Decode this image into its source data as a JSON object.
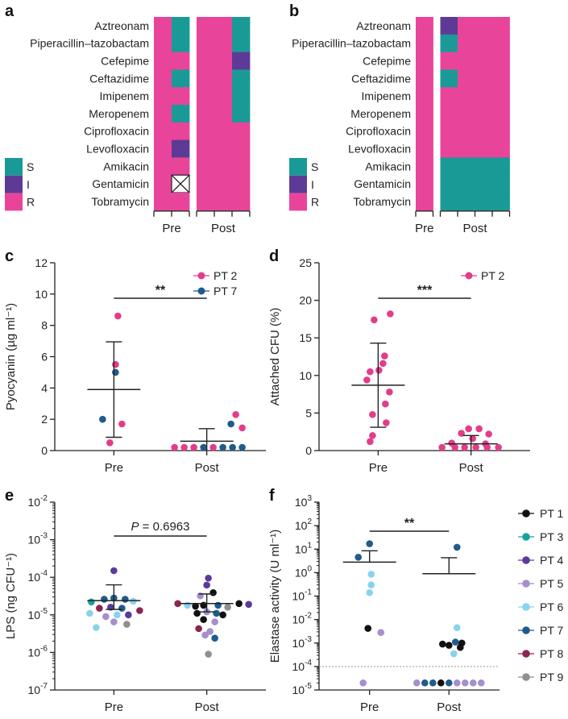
{
  "colors": {
    "S": "#1a9a96",
    "I": "#5e3a97",
    "R": "#e8459a",
    "PT 1": "#111111",
    "PT 2": "#e23d8a",
    "PT 3": "#14a39a",
    "PT 4": "#5b3a9c",
    "PT 5": "#a58fcc",
    "PT 6": "#88d3ee",
    "PT 7": "#1f5b8c",
    "PT 8": "#8c2450",
    "PT 9": "#8f8f8f"
  },
  "panels": {
    "a": "a",
    "b": "b",
    "c": "c",
    "d": "d",
    "e": "e",
    "f": "f"
  },
  "heatmap_legend": [
    "S",
    "I",
    "R"
  ],
  "chart_data": [
    {
      "panel": "a",
      "type": "heatmap",
      "rows": [
        "Aztreonam",
        "Piperacillin–tazobactam",
        "Cefepime",
        "Ceftazidime",
        "Imipenem",
        "Meropenem",
        "Ciprofloxacin",
        "Levofloxacin",
        "Amikacin",
        "Gentamicin",
        "Tobramycin"
      ],
      "groups": [
        "Pre",
        "Post"
      ],
      "columns_per_group": [
        2,
        3
      ],
      "cells": [
        [
          "R",
          "S",
          "R",
          "R",
          "S"
        ],
        [
          "R",
          "S",
          "R",
          "R",
          "S"
        ],
        [
          "R",
          "R",
          "R",
          "R",
          "I"
        ],
        [
          "R",
          "S",
          "R",
          "R",
          "S"
        ],
        [
          "R",
          "R",
          "R",
          "R",
          "S"
        ],
        [
          "R",
          "S",
          "R",
          "R",
          "S"
        ],
        [
          "R",
          "R",
          "R",
          "R",
          "R"
        ],
        [
          "R",
          "I",
          "R",
          "R",
          "R"
        ],
        [
          "R",
          "R",
          "R",
          "R",
          "R"
        ],
        [
          "R",
          "X",
          "R",
          "R",
          "R"
        ],
        [
          "R",
          "R",
          "R",
          "R",
          "R"
        ]
      ]
    },
    {
      "panel": "b",
      "type": "heatmap",
      "rows": [
        "Aztreonam",
        "Piperacillin–tazobactam",
        "Cefepime",
        "Ceftazidime",
        "Imipenem",
        "Meropenem",
        "Ciprofloxacin",
        "Levofloxacin",
        "Amikacin",
        "Gentamicin",
        "Tobramycin"
      ],
      "groups": [
        "Pre",
        "Post"
      ],
      "columns_per_group": [
        1,
        4
      ],
      "cells": [
        [
          "R",
          "I",
          "R",
          "R",
          "R"
        ],
        [
          "R",
          "S",
          "R",
          "R",
          "R"
        ],
        [
          "R",
          "R",
          "R",
          "R",
          "R"
        ],
        [
          "R",
          "S",
          "R",
          "R",
          "R"
        ],
        [
          "R",
          "R",
          "R",
          "R",
          "R"
        ],
        [
          "R",
          "R",
          "R",
          "R",
          "R"
        ],
        [
          "R",
          "R",
          "R",
          "R",
          "R"
        ],
        [
          "R",
          "R",
          "R",
          "R",
          "R"
        ],
        [
          "R",
          "S",
          "S",
          "S",
          "S"
        ],
        [
          "R",
          "S",
          "S",
          "S",
          "S"
        ],
        [
          "R",
          "S",
          "S",
          "S",
          "S"
        ]
      ]
    },
    {
      "panel": "c",
      "type": "scatter",
      "categories": [
        "Pre",
        "Post"
      ],
      "ylabel": "Pyocyanin (µg ml⁻¹)",
      "ylim": [
        0,
        12
      ],
      "yticks": [
        0,
        2,
        4,
        6,
        8,
        10,
        12
      ],
      "legend": [
        "PT 2",
        "PT 7"
      ],
      "significance": "**",
      "mean": [
        3.9,
        0.6
      ],
      "sd_upper": [
        6.95,
        1.4
      ],
      "sd_lower": [
        0.85,
        0
      ],
      "points": [
        {
          "cat": 0,
          "dx": 5,
          "y": 8.6,
          "pt": "PT 2"
        },
        {
          "cat": 0,
          "dx": 2,
          "y": 5.5,
          "pt": "PT 2"
        },
        {
          "cat": 0,
          "dx": 2,
          "y": 5.0,
          "pt": "PT 7"
        },
        {
          "cat": 0,
          "dx": -14,
          "y": 2.0,
          "pt": "PT 7"
        },
        {
          "cat": 0,
          "dx": 10,
          "y": 1.7,
          "pt": "PT 2"
        },
        {
          "cat": 0,
          "dx": -5,
          "y": 0.5,
          "pt": "PT 2"
        },
        {
          "cat": 1,
          "dx": 36,
          "y": 2.3,
          "pt": "PT 2"
        },
        {
          "cat": 1,
          "dx": 30,
          "y": 1.7,
          "pt": "PT 7"
        },
        {
          "cat": 1,
          "dx": 44,
          "y": 1.45,
          "pt": "PT 2"
        },
        {
          "cat": 1,
          "dx": -40,
          "y": 0,
          "pt": "PT 2"
        },
        {
          "cat": 1,
          "dx": -28,
          "y": 0.05,
          "pt": "PT 2"
        },
        {
          "cat": 1,
          "dx": -16,
          "y": 0.1,
          "pt": "PT 2"
        },
        {
          "cat": 1,
          "dx": -4,
          "y": 0,
          "pt": "PT 7"
        },
        {
          "cat": 1,
          "dx": 8,
          "y": 0,
          "pt": "PT 2"
        },
        {
          "cat": 1,
          "dx": 20,
          "y": 0,
          "pt": "PT 7"
        },
        {
          "cat": 1,
          "dx": 32,
          "y": 0,
          "pt": "PT 7"
        },
        {
          "cat": 1,
          "dx": 44,
          "y": 0,
          "pt": "PT 7"
        }
      ]
    },
    {
      "panel": "d",
      "type": "scatter",
      "categories": [
        "Pre",
        "Post"
      ],
      "ylabel": "Attached CFU (%)",
      "ylim": [
        0,
        25
      ],
      "yticks": [
        0,
        5,
        10,
        15,
        20,
        25
      ],
      "legend": [
        "PT 2"
      ],
      "significance": "***",
      "mean": [
        8.7,
        0.9
      ],
      "sd_upper": [
        14.3,
        2.0
      ],
      "sd_lower": [
        3.1,
        0
      ],
      "points": [
        {
          "cat": 0,
          "dx": 15,
          "y": 18.2,
          "pt": "PT 2"
        },
        {
          "cat": 0,
          "dx": -5,
          "y": 17.4,
          "pt": "PT 2"
        },
        {
          "cat": 0,
          "dx": 8,
          "y": 12.6,
          "pt": "PT 2"
        },
        {
          "cat": 0,
          "dx": 6,
          "y": 11.6,
          "pt": "PT 2"
        },
        {
          "cat": 0,
          "dx": -10,
          "y": 10.5,
          "pt": "PT 2"
        },
        {
          "cat": 0,
          "dx": 1,
          "y": 10.7,
          "pt": "PT 2"
        },
        {
          "cat": 0,
          "dx": -14,
          "y": 9.4,
          "pt": "PT 2"
        },
        {
          "cat": 0,
          "dx": 14,
          "y": 7.8,
          "pt": "PT 2"
        },
        {
          "cat": 0,
          "dx": 9,
          "y": 6.2,
          "pt": "PT 2"
        },
        {
          "cat": 0,
          "dx": -7,
          "y": 4.8,
          "pt": "PT 2"
        },
        {
          "cat": 0,
          "dx": 10,
          "y": 3.7,
          "pt": "PT 2"
        },
        {
          "cat": 0,
          "dx": -7,
          "y": 2.0,
          "pt": "PT 2"
        },
        {
          "cat": 0,
          "dx": -10,
          "y": 1.2,
          "pt": "PT 2"
        },
        {
          "cat": 1,
          "dx": -3,
          "y": 2.9,
          "pt": "PT 2"
        },
        {
          "cat": 1,
          "dx": 10,
          "y": 2.9,
          "pt": "PT 2"
        },
        {
          "cat": 1,
          "dx": -12,
          "y": 2.3,
          "pt": "PT 2"
        },
        {
          "cat": 1,
          "dx": 22,
          "y": 2.2,
          "pt": "PT 2"
        },
        {
          "cat": 1,
          "dx": 2,
          "y": 1.6,
          "pt": "PT 2"
        },
        {
          "cat": 1,
          "dx": -24,
          "y": 1.0,
          "pt": "PT 2"
        },
        {
          "cat": 1,
          "dx": 18,
          "y": 0.9,
          "pt": "PT 2"
        },
        {
          "cat": 1,
          "dx": -36,
          "y": 0.25,
          "pt": "PT 2"
        },
        {
          "cat": 1,
          "dx": -20,
          "y": 0.2,
          "pt": "PT 2"
        },
        {
          "cat": 1,
          "dx": -8,
          "y": 0.25,
          "pt": "PT 2"
        },
        {
          "cat": 1,
          "dx": 6,
          "y": 0.15,
          "pt": "PT 2"
        },
        {
          "cat": 1,
          "dx": 20,
          "y": 0.2,
          "pt": "PT 2"
        },
        {
          "cat": 1,
          "dx": 34,
          "y": 0.2,
          "pt": "PT 2"
        }
      ]
    },
    {
      "panel": "e",
      "type": "scatter",
      "scale": "log",
      "categories": [
        "Pre",
        "Post"
      ],
      "ylabel": "LPS (ng CFU⁻¹)",
      "ylim_exp": [
        -7,
        -2
      ],
      "significance": "P = 0.6963",
      "mean": [
        2.4e-05,
        2e-05
      ],
      "sd_upper": [
        6.3e-05,
        3.6e-05
      ],
      "sd_lower": [
        1.4e-05,
        1.2e-05
      ],
      "points": [
        {
          "cat": 0,
          "dx": 0,
          "y": 0.00015,
          "pt": "PT 4"
        },
        {
          "cat": 0,
          "dx": -12,
          "y": 2.6e-05,
          "pt": "PT 7"
        },
        {
          "cat": 0,
          "dx": 0,
          "y": 2.8e-05,
          "pt": "PT 7"
        },
        {
          "cat": 0,
          "dx": 14,
          "y": 2.6e-05,
          "pt": "PT 7"
        },
        {
          "cat": 0,
          "dx": -28,
          "y": 2.2e-05,
          "pt": "PT 3"
        },
        {
          "cat": 0,
          "dx": 24,
          "y": 2.3e-05,
          "pt": "PT 6"
        },
        {
          "cat": 0,
          "dx": -18,
          "y": 1.5e-05,
          "pt": "PT 8"
        },
        {
          "cat": 0,
          "dx": -4,
          "y": 1.6e-05,
          "pt": "PT 4"
        },
        {
          "cat": 0,
          "dx": 10,
          "y": 1.5e-05,
          "pt": "PT 7"
        },
        {
          "cat": 0,
          "dx": -30,
          "y": 1.1e-05,
          "pt": "PT 6"
        },
        {
          "cat": 0,
          "dx": -10,
          "y": 9e-06,
          "pt": "PT 5"
        },
        {
          "cat": 0,
          "dx": 4,
          "y": 1e-05,
          "pt": "PT 6"
        },
        {
          "cat": 0,
          "dx": 18,
          "y": 1e-05,
          "pt": "PT 4"
        },
        {
          "cat": 0,
          "dx": 32,
          "y": 1.3e-05,
          "pt": "PT 8"
        },
        {
          "cat": 0,
          "dx": -22,
          "y": 4.6e-06,
          "pt": "PT 6"
        },
        {
          "cat": 0,
          "dx": 0,
          "y": 6.5e-06,
          "pt": "PT 5"
        },
        {
          "cat": 0,
          "dx": 16,
          "y": 5.6e-06,
          "pt": "PT 9"
        },
        {
          "cat": 1,
          "dx": 2,
          "y": 9.5e-05,
          "pt": "PT 4"
        },
        {
          "cat": 1,
          "dx": 0,
          "y": 6.2e-05,
          "pt": "PT 4"
        },
        {
          "cat": 1,
          "dx": 8,
          "y": 3.9e-05,
          "pt": "PT 1"
        },
        {
          "cat": 1,
          "dx": -8,
          "y": 3.2e-05,
          "pt": "PT 5"
        },
        {
          "cat": 1,
          "dx": -36,
          "y": 2e-05,
          "pt": "PT 8"
        },
        {
          "cat": 1,
          "dx": -24,
          "y": 1.8e-05,
          "pt": "PT 6"
        },
        {
          "cat": 1,
          "dx": -14,
          "y": 1.7e-05,
          "pt": "PT 1"
        },
        {
          "cat": 1,
          "dx": -4,
          "y": 1.8e-05,
          "pt": "PT 1"
        },
        {
          "cat": 1,
          "dx": 14,
          "y": 1.8e-05,
          "pt": "PT 7"
        },
        {
          "cat": 1,
          "dx": 26,
          "y": 1.6e-05,
          "pt": "PT 9"
        },
        {
          "cat": 1,
          "dx": 40,
          "y": 2e-05,
          "pt": "PT 1"
        },
        {
          "cat": 1,
          "dx": 52,
          "y": 1.9e-05,
          "pt": "PT 4"
        },
        {
          "cat": 1,
          "dx": -12,
          "y": 1.1e-05,
          "pt": "PT 1"
        },
        {
          "cat": 1,
          "dx": 0,
          "y": 1.2e-05,
          "pt": "PT 5"
        },
        {
          "cat": 1,
          "dx": 12,
          "y": 1.1e-05,
          "pt": "PT 7"
        },
        {
          "cat": 1,
          "dx": 20,
          "y": 1e-05,
          "pt": "PT 1"
        },
        {
          "cat": 1,
          "dx": -4,
          "y": 7.5e-06,
          "pt": "PT 1"
        },
        {
          "cat": 1,
          "dx": 10,
          "y": 6.5e-06,
          "pt": "PT 5"
        },
        {
          "cat": 1,
          "dx": -10,
          "y": 4.3e-06,
          "pt": "PT 8"
        },
        {
          "cat": 1,
          "dx": 4,
          "y": 3.6e-06,
          "pt": "PT 5"
        },
        {
          "cat": 1,
          "dx": -2,
          "y": 2.9e-06,
          "pt": "PT 5"
        },
        {
          "cat": 1,
          "dx": 10,
          "y": 2.4e-06,
          "pt": "PT 7"
        },
        {
          "cat": 1,
          "dx": 2,
          "y": 9e-07,
          "pt": "PT 9"
        }
      ]
    },
    {
      "panel": "f",
      "type": "scatter",
      "scale": "log",
      "categories": [
        "Pre",
        "Post"
      ],
      "ylabel": "Elastase activity (U ml⁻¹)",
      "ylim_exp": [
        -5,
        3
      ],
      "threshold": 0.0001,
      "significance": "**",
      "mean": [
        2.8,
        0.9
      ],
      "sd_upper": [
        8.5,
        4.3
      ],
      "sd_lower": null,
      "legend": [
        "PT 1",
        "PT 3",
        "PT 4",
        "PT 5",
        "PT 6",
        "PT 7",
        "PT 8",
        "PT 9"
      ],
      "points": [
        {
          "cat": 0,
          "dx": 0,
          "y": 17,
          "pt": "PT 7"
        },
        {
          "cat": 0,
          "dx": -14,
          "y": 4.5,
          "pt": "PT 7"
        },
        {
          "cat": 0,
          "dx": 2,
          "y": 0.85,
          "pt": "PT 6"
        },
        {
          "cat": 0,
          "dx": 2,
          "y": 0.3,
          "pt": "PT 6"
        },
        {
          "cat": 0,
          "dx": 0,
          "y": 0.14,
          "pt": "PT 6"
        },
        {
          "cat": 0,
          "dx": -2,
          "y": 0.0042,
          "pt": "PT 1"
        },
        {
          "cat": 0,
          "dx": 14,
          "y": 0.0028,
          "pt": "PT 5"
        },
        {
          "cat": 0,
          "dx": -8,
          "y": 2e-05,
          "pt": "PT 5"
        },
        {
          "cat": 1,
          "dx": 10,
          "y": 12,
          "pt": "PT 7"
        },
        {
          "cat": 1,
          "dx": 10,
          "y": 0.0045,
          "pt": "PT 6"
        },
        {
          "cat": 1,
          "dx": -8,
          "y": 0.0009,
          "pt": "PT 1"
        },
        {
          "cat": 1,
          "dx": 0,
          "y": 0.0008,
          "pt": "PT 1"
        },
        {
          "cat": 1,
          "dx": 8,
          "y": 0.0011,
          "pt": "PT 7"
        },
        {
          "cat": 1,
          "dx": 16,
          "y": 0.001,
          "pt": "PT 1"
        },
        {
          "cat": 1,
          "dx": 14,
          "y": 0.00065,
          "pt": "PT 1"
        },
        {
          "cat": 1,
          "dx": 6,
          "y": 0.00035,
          "pt": "PT 6"
        },
        {
          "cat": 1,
          "dx": -40,
          "y": 2e-05,
          "pt": "PT 5"
        },
        {
          "cat": 1,
          "dx": -30,
          "y": 2e-05,
          "pt": "PT 7"
        },
        {
          "cat": 1,
          "dx": -20,
          "y": 2e-05,
          "pt": "PT 7"
        },
        {
          "cat": 1,
          "dx": -10,
          "y": 2e-05,
          "pt": "PT 1"
        },
        {
          "cat": 1,
          "dx": 0,
          "y": 2e-05,
          "pt": "PT 7"
        },
        {
          "cat": 1,
          "dx": 10,
          "y": 2e-05,
          "pt": "PT 5"
        },
        {
          "cat": 1,
          "dx": 20,
          "y": 2e-05,
          "pt": "PT 5"
        },
        {
          "cat": 1,
          "dx": 30,
          "y": 2e-05,
          "pt": "PT 5"
        },
        {
          "cat": 1,
          "dx": 40,
          "y": 2e-05,
          "pt": "PT 5"
        }
      ]
    }
  ]
}
